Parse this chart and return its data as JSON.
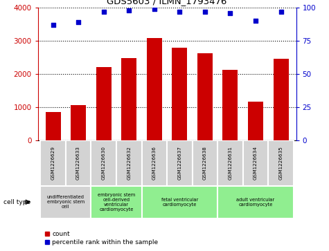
{
  "title": "GDS5603 / ILMN_1793476",
  "samples": [
    "GSM1226629",
    "GSM1226633",
    "GSM1226630",
    "GSM1226632",
    "GSM1226636",
    "GSM1226637",
    "GSM1226638",
    "GSM1226631",
    "GSM1226634",
    "GSM1226635"
  ],
  "counts": [
    850,
    1060,
    2200,
    2480,
    3080,
    2800,
    2620,
    2120,
    1180,
    2460
  ],
  "percentiles": [
    87,
    89,
    97,
    98,
    99,
    97,
    97,
    96,
    90,
    97
  ],
  "ylim_left": [
    0,
    4000
  ],
  "ylim_right": [
    0,
    100
  ],
  "yticks_left": [
    0,
    1000,
    2000,
    3000,
    4000
  ],
  "yticks_right": [
    0,
    25,
    50,
    75,
    100
  ],
  "cell_types": [
    {
      "label": "undifferentiated\nembryonic stem\ncell",
      "start": 0,
      "end": 2,
      "color": "#d3d3d3"
    },
    {
      "label": "embryonic stem\ncell-derived\nventricular\ncardiomyocyte",
      "start": 2,
      "end": 4,
      "color": "#90EE90"
    },
    {
      "label": "fetal ventricular\ncardiomyocyte",
      "start": 4,
      "end": 7,
      "color": "#90EE90"
    },
    {
      "label": "adult ventricular\ncardiomyocyte",
      "start": 7,
      "end": 10,
      "color": "#90EE90"
    }
  ],
  "bar_color": "#cc0000",
  "dot_color": "#0000cc",
  "tick_color_left": "#cc0000",
  "tick_color_right": "#0000cc",
  "sample_bg_color": "#d3d3d3",
  "grid_color": "#000000"
}
